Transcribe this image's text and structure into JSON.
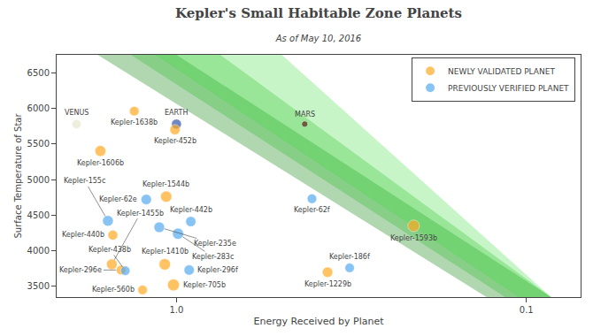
{
  "chart_data": {
    "type": "scatter",
    "title": "Kepler's Small Habitable Zone Planets",
    "subtitle": "As of May 10, 2016",
    "xlabel": "Energy Received by Planet",
    "ylabel": "Surface Temperature of Star",
    "log": "x",
    "xlim": [
      2.2,
      0.07
    ],
    "ylim": [
      3350,
      6750
    ],
    "xticks": [
      {
        "value": 1.0,
        "label": "1.0"
      },
      0.1
    ],
    "yticks": [
      3500,
      4000,
      4500,
      5000,
      5500,
      6000,
      6500
    ],
    "grid": false,
    "legend": "upper right",
    "habitable_zone": [
      {
        "x": [
          1.68,
          0.13,
          0.085,
          1.0
        ],
        "y": [
          6750,
          3350,
          3350,
          6750
        ],
        "color": "#1e8c1e"
      },
      {
        "x": [
          1.35,
          0.115,
          0.085,
          0.75
        ],
        "y": [
          6750,
          3350,
          3350,
          6750
        ],
        "color": "#29b829"
      },
      {
        "x": [
          1.15,
          0.105,
          0.085,
          0.5
        ],
        "y": [
          6750,
          3350,
          3350,
          6750
        ],
        "color": "#44dd44"
      }
    ],
    "solar_system": {
      "labels": [
        "VENUS",
        "EARTH",
        "MARS"
      ],
      "x": [
        1.93,
        1.0,
        0.43
      ],
      "values": [
        5778,
        5778,
        5778
      ],
      "sizes": [
        120,
        140,
        55
      ],
      "colors": [
        "#e8e8d0",
        "#3355aa",
        "#552211"
      ]
    },
    "series": [
      {
        "name": "NEWLY VALIDATED PLANET",
        "color": "#ffaa22",
        "labels": [
          "Kepler-1638b",
          "Kepler-452b",
          "Kepler-1606b",
          "Kepler-1544b",
          "Kepler-440b",
          "Kepler-1455b",
          "Kepler-296e",
          "Kepler-1410b",
          "Kepler-705b",
          "Kepler-560b",
          "Kepler-1229b",
          "Kepler-1593b"
        ],
        "x": [
          1.32,
          1.01,
          1.65,
          1.07,
          1.52,
          1.53,
          1.44,
          1.08,
          1.02,
          1.25,
          0.37,
          0.21
        ],
        "values": [
          5960,
          5700,
          5400,
          4760,
          4220,
          3810,
          3730,
          3810,
          3520,
          3450,
          3700,
          4350
        ],
        "sizes": [
          130,
          150,
          170,
          180,
          140,
          165,
          130,
          185,
          200,
          130,
          155,
          195
        ]
      },
      {
        "name": "PREVIOUSLY VERIFIED PLANET",
        "color": "#55aaee",
        "labels": [
          "Kepler-62e",
          "Kepler-62f",
          "Kepler-155c",
          "Kepler-442b",
          "Kepler-235e",
          "Kepler-283c",
          "Kepler-438b",
          "Kepler-296f",
          "Kepler-186f"
        ],
        "x": [
          1.22,
          0.41,
          1.57,
          0.91,
          1.12,
          0.99,
          1.4,
          0.92,
          0.32
        ],
        "values": [
          4720,
          4730,
          4420,
          4410,
          4330,
          4240,
          3720,
          3730,
          3760
        ],
        "sizes": [
          155,
          130,
          165,
          148,
          160,
          175,
          125,
          148,
          128
        ]
      }
    ]
  }
}
